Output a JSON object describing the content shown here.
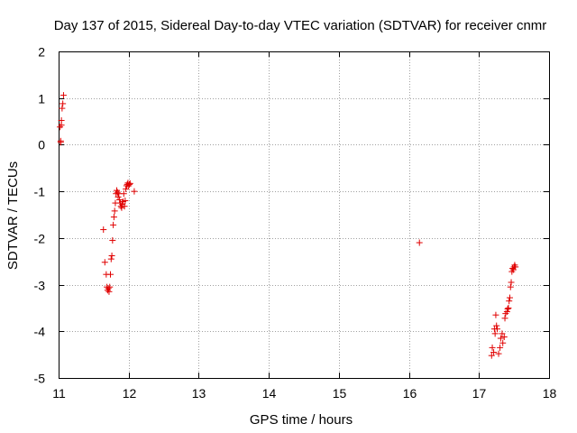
{
  "chart_data": {
    "type": "scatter",
    "title": "Day 137 of 2015, Sidereal Day-to-day VTEC variation (SDTVAR) for receiver cnmr",
    "xlabel": "GPS time / hours",
    "ylabel": "SDTVAR / TECUs",
    "xlim": [
      11,
      18
    ],
    "ylim": [
      -5,
      2
    ],
    "xticks": [
      "11",
      "12",
      "13",
      "14",
      "15",
      "16",
      "17",
      "18"
    ],
    "yticks": [
      "2",
      "1",
      "0",
      "-1",
      "-2",
      "-3",
      "-4",
      "-5"
    ],
    "grid": true,
    "marker": "+",
    "color": "#e00000",
    "series": [
      {
        "name": "SDTVAR",
        "x": [
          11.02,
          11.03,
          11.04,
          11.05,
          11.06,
          11.07,
          11.03,
          11.04,
          11.64,
          11.66,
          11.68,
          11.69,
          11.7,
          11.71,
          11.72,
          11.73,
          11.74,
          11.75,
          11.76,
          11.77,
          11.78,
          11.79,
          11.8,
          11.81,
          11.82,
          11.83,
          11.84,
          11.85,
          11.86,
          11.87,
          11.88,
          11.89,
          11.9,
          11.91,
          11.92,
          11.93,
          11.94,
          11.95,
          11.96,
          11.97,
          11.98,
          11.99,
          12.0,
          12.01,
          12.02,
          12.08,
          16.15,
          17.18,
          17.19,
          17.21,
          17.22,
          17.23,
          17.24,
          17.25,
          17.26,
          17.28,
          17.3,
          17.31,
          17.33,
          17.34,
          17.36,
          17.37,
          17.38,
          17.4,
          17.41,
          17.42,
          17.43,
          17.44,
          17.45,
          17.46,
          17.47,
          17.48,
          17.49,
          17.5,
          17.51,
          17.52
        ],
        "y": [
          0.38,
          0.05,
          0.52,
          0.78,
          0.88,
          1.06,
          0.08,
          0.42,
          -1.82,
          -2.52,
          -2.78,
          -3.05,
          -3.12,
          -3.08,
          -3.15,
          -3.05,
          -2.78,
          -2.45,
          -2.38,
          -2.05,
          -1.72,
          -1.55,
          -1.42,
          -1.25,
          -1.05,
          -0.98,
          -1.02,
          -1.12,
          -1.05,
          -1.18,
          -1.25,
          -1.32,
          -1.35,
          -1.28,
          -1.22,
          -1.05,
          -1.32,
          -1.2,
          -0.95,
          -0.88,
          -0.85,
          -0.82,
          -0.88,
          -0.85,
          -0.83,
          -1.0,
          -2.1,
          -4.52,
          -4.35,
          -4.45,
          -3.95,
          -4.05,
          -3.65,
          -3.88,
          -3.95,
          -4.48,
          -4.35,
          -4.15,
          -4.05,
          -4.25,
          -4.12,
          -3.72,
          -3.62,
          -3.58,
          -3.52,
          -3.5,
          -3.35,
          -3.28,
          -3.05,
          -2.95,
          -2.72,
          -2.65,
          -2.68,
          -2.62,
          -2.58,
          -2.62
        ]
      }
    ]
  }
}
